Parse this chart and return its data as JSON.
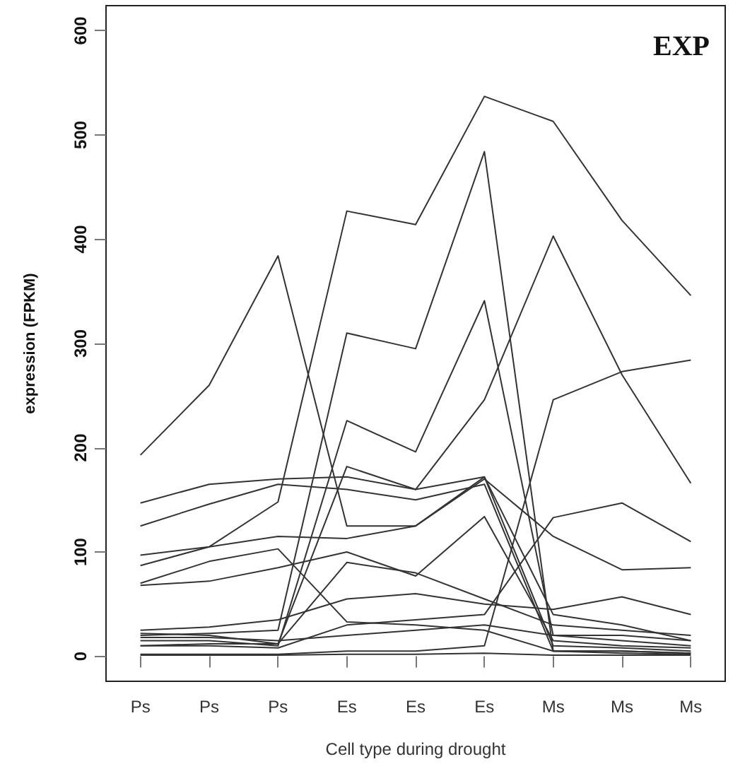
{
  "chart_data": {
    "type": "line",
    "title": "EXP",
    "xlabel": "Cell type during drought",
    "ylabel": "expression (FPKM)",
    "categories": [
      "Ps",
      "Ps",
      "Ps",
      "Es",
      "Es",
      "Es",
      "Ms",
      "Ms",
      "Ms"
    ],
    "ylim": [
      -24,
      624
    ],
    "yticks": [
      0,
      100,
      200,
      300,
      400,
      500,
      600
    ],
    "grid": false,
    "marker": "none",
    "line_style": "solid",
    "series": [
      {
        "color": "#333333",
        "values": [
          193,
          260,
          384,
          125,
          125,
          170,
          115,
          83,
          85
        ]
      },
      {
        "color": "#333333",
        "values": [
          87,
          105,
          148,
          427,
          414,
          537,
          513,
          418,
          346
        ]
      },
      {
        "color": "#333333",
        "values": [
          20,
          22,
          25,
          310,
          295,
          484,
          5,
          3,
          2
        ]
      },
      {
        "color": "#333333",
        "values": [
          10,
          12,
          12,
          182,
          160,
          246,
          403,
          270,
          166
        ]
      },
      {
        "color": "#333333",
        "values": [
          2,
          2,
          2,
          5,
          5,
          10,
          246,
          273,
          284
        ]
      },
      {
        "color": "#333333",
        "values": [
          15,
          15,
          10,
          226,
          196,
          341,
          20,
          15,
          10
        ]
      },
      {
        "color": "#333333",
        "values": [
          147,
          165,
          170,
          172,
          160,
          172,
          10,
          8,
          5
        ]
      },
      {
        "color": "#333333",
        "values": [
          125,
          146,
          165,
          160,
          150,
          165,
          5,
          5,
          3
        ]
      },
      {
        "color": "#333333",
        "values": [
          97,
          105,
          115,
          113,
          125,
          172,
          40,
          30,
          15
        ]
      },
      {
        "color": "#333333",
        "values": [
          70,
          91,
          103,
          33,
          30,
          25,
          5,
          5,
          3
        ]
      },
      {
        "color": "#333333",
        "values": [
          68,
          72,
          85,
          100,
          77,
          134,
          15,
          10,
          8
        ]
      },
      {
        "color": "#333333",
        "values": [
          25,
          28,
          35,
          55,
          60,
          50,
          45,
          57,
          40
        ]
      },
      {
        "color": "#333333",
        "values": [
          22,
          20,
          12,
          90,
          80,
          55,
          30,
          25,
          20
        ]
      },
      {
        "color": "#333333",
        "values": [
          10,
          10,
          8,
          30,
          35,
          40,
          133,
          147,
          110
        ]
      },
      {
        "color": "#333333",
        "values": [
          18,
          18,
          15,
          20,
          25,
          30,
          20,
          20,
          15
        ]
      },
      {
        "color": "#333333",
        "values": [
          1,
          1,
          1,
          2,
          2,
          3,
          1,
          1,
          1
        ]
      }
    ]
  }
}
